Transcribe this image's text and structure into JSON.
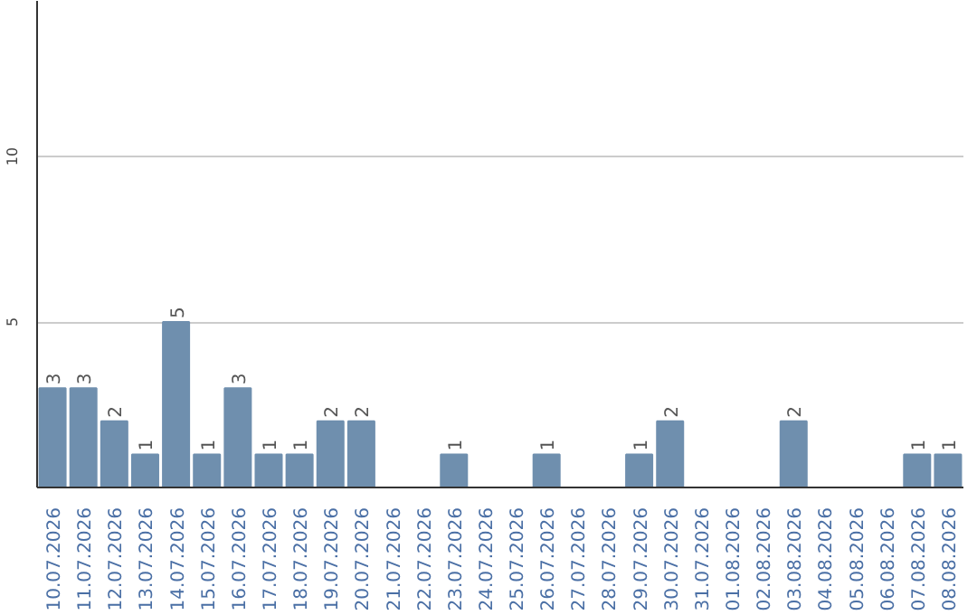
{
  "chart_data": {
    "type": "bar",
    "categories": [
      "10.07.2026",
      "11.07.2026",
      "12.07.2026",
      "13.07.2026",
      "14.07.2026",
      "15.07.2026",
      "16.07.2026",
      "17.07.2026",
      "18.07.2026",
      "19.07.2026",
      "20.07.2026",
      "21.07.2026",
      "22.07.2026",
      "23.07.2026",
      "24.07.2026",
      "25.07.2026",
      "26.07.2026",
      "27.07.2026",
      "28.07.2026",
      "29.07.2026",
      "30.07.2026",
      "31.07.2026",
      "01.08.2026",
      "02.08.2026",
      "03.08.2026",
      "04.08.2026",
      "05.08.2026",
      "06.08.2026",
      "07.08.2026",
      "08.08.2026"
    ],
    "values": [
      3,
      3,
      2,
      1,
      5,
      1,
      3,
      1,
      1,
      2,
      2,
      0,
      0,
      1,
      0,
      0,
      1,
      0,
      0,
      1,
      2,
      0,
      0,
      0,
      2,
      0,
      0,
      0,
      1,
      1
    ],
    "value_labels": [
      "3",
      "3",
      "2",
      "1",
      "5",
      "1",
      "3",
      "1",
      "1",
      "2",
      "2",
      null,
      null,
      "1",
      null,
      null,
      "1",
      null,
      null,
      "1",
      "2",
      null,
      null,
      null,
      "2",
      null,
      null,
      null,
      "1",
      "1"
    ],
    "color": "#6f8fae",
    "ylim": [
      0,
      14.7
    ],
    "yticks": [
      5,
      10
    ],
    "grid": "y"
  }
}
